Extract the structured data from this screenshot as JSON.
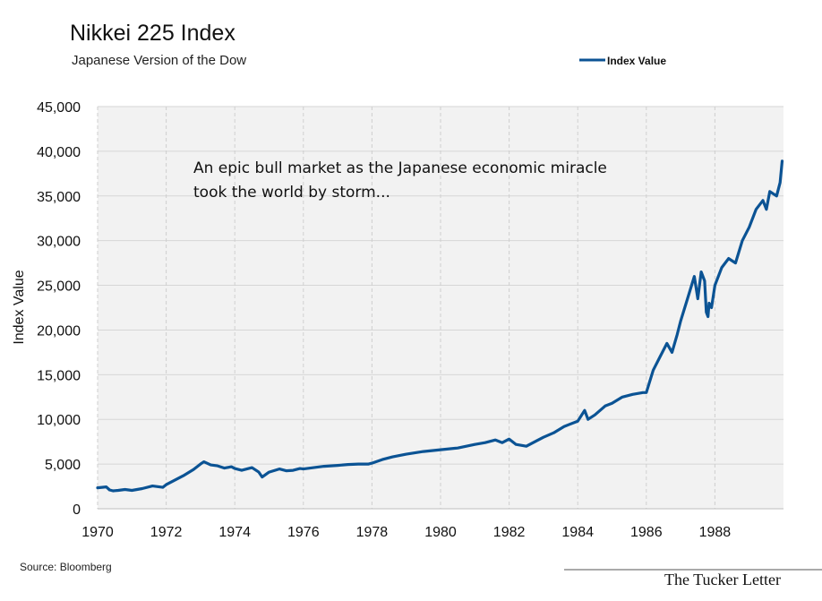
{
  "chart_data": {
    "type": "line",
    "title": "Nikkei 225 Index",
    "subtitle": "Japanese Version of the Dow",
    "ylabel": "Index Value",
    "xlabel": "",
    "xlim": [
      1970,
      1990
    ],
    "ylim": [
      0,
      45000
    ],
    "x_ticks": [
      "1970",
      "1972",
      "1974",
      "1976",
      "1978",
      "1980",
      "1982",
      "1984",
      "1986",
      "1988"
    ],
    "y_ticks": [
      "0",
      "5,000",
      "10,000",
      "15,000",
      "20,000",
      "25,000",
      "30,000",
      "35,000",
      "40,000",
      "45,000"
    ],
    "grid": true,
    "legend": {
      "position": "top-right",
      "entries": [
        "Index Value"
      ]
    },
    "annotation": {
      "line1": "An epic bull market as the Japanese economic miracle",
      "line2": "took the world by storm..."
    },
    "series": [
      {
        "name": "Index Value",
        "color": "#0b5394",
        "x": [
          1970.0,
          1970.25,
          1970.35,
          1970.45,
          1970.6,
          1970.8,
          1971.0,
          1971.3,
          1971.6,
          1971.9,
          1972.0,
          1972.2,
          1972.5,
          1972.8,
          1973.0,
          1973.1,
          1973.3,
          1973.5,
          1973.7,
          1973.9,
          1974.0,
          1974.2,
          1974.5,
          1974.7,
          1974.8,
          1975.0,
          1975.3,
          1975.5,
          1975.7,
          1975.9,
          1976.0,
          1976.3,
          1976.6,
          1977.0,
          1977.3,
          1977.6,
          1977.9,
          1978.0,
          1978.3,
          1978.6,
          1979.0,
          1979.5,
          1980.0,
          1980.5,
          1981.0,
          1981.3,
          1981.6,
          1981.8,
          1982.0,
          1982.2,
          1982.5,
          1982.8,
          1983.0,
          1983.3,
          1983.6,
          1984.0,
          1984.2,
          1984.3,
          1984.5,
          1984.8,
          1985.0,
          1985.3,
          1985.6,
          1985.9,
          1986.0,
          1986.2,
          1986.4,
          1986.6,
          1986.75,
          1986.9,
          1987.0,
          1987.2,
          1987.4,
          1987.5,
          1987.6,
          1987.7,
          1987.75,
          1987.8,
          1987.83,
          1987.9,
          1988.0,
          1988.2,
          1988.4,
          1988.6,
          1988.8,
          1989.0,
          1989.2,
          1989.4,
          1989.5,
          1989.6,
          1989.8,
          1989.9,
          1989.96
        ],
        "values": [
          2350,
          2450,
          2100,
          2000,
          2050,
          2150,
          2050,
          2250,
          2550,
          2400,
          2700,
          3100,
          3700,
          4400,
          5000,
          5250,
          4900,
          4800,
          4550,
          4700,
          4500,
          4300,
          4600,
          4100,
          3550,
          4100,
          4450,
          4250,
          4300,
          4500,
          4450,
          4600,
          4750,
          4850,
          4950,
          5000,
          5000,
          5100,
          5500,
          5800,
          6100,
          6400,
          6600,
          6800,
          7200,
          7400,
          7700,
          7400,
          7800,
          7200,
          7000,
          7600,
          8000,
          8500,
          9200,
          9800,
          11000,
          10000,
          10500,
          11500,
          11800,
          12500,
          12800,
          13000,
          13000,
          15500,
          17000,
          18500,
          17500,
          19500,
          21000,
          23500,
          26000,
          23500,
          26500,
          25500,
          22000,
          21500,
          23000,
          22500,
          25000,
          27000,
          28000,
          27500,
          30000,
          31500,
          33500,
          34500,
          33500,
          35500,
          35000,
          36500,
          38900
        ]
      }
    ]
  },
  "source": "Source: Bloomberg",
  "brand": "The Tucker Letter"
}
